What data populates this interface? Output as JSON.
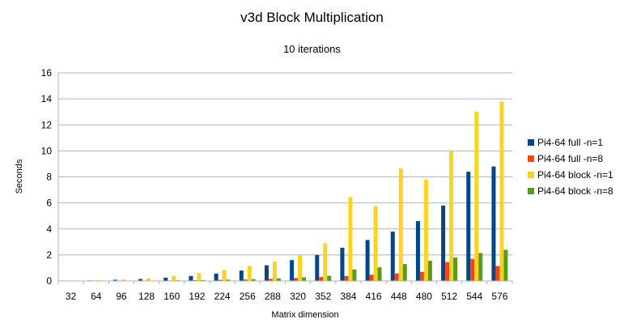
{
  "chart_data": {
    "type": "bar",
    "title": "v3d Block Multiplication",
    "subtitle": "10 iterations",
    "xlabel": "Matrix dimension",
    "ylabel": "Seconds",
    "ylim": [
      0,
      16
    ],
    "yticks": [
      0,
      2,
      4,
      6,
      8,
      10,
      12,
      14,
      16
    ],
    "grid": "horizontal",
    "legend_position": "right",
    "categories": [
      "32",
      "64",
      "96",
      "128",
      "160",
      "192",
      "224",
      "256",
      "288",
      "320",
      "352",
      "384",
      "416",
      "448",
      "480",
      "512",
      "544",
      "576"
    ],
    "series": [
      {
        "name": "Pi4-64 full -n=1",
        "color": "#004586",
        "values": [
          0.01,
          0.04,
          0.09,
          0.15,
          0.25,
          0.38,
          0.56,
          0.8,
          1.2,
          1.6,
          2.0,
          2.55,
          3.15,
          3.8,
          4.6,
          5.8,
          8.4,
          8.8
        ]
      },
      {
        "name": "Pi4-64 full -n=8",
        "color": "#ff420e",
        "values": [
          0.005,
          0.01,
          0.02,
          0.03,
          0.04,
          0.06,
          0.08,
          0.11,
          0.16,
          0.22,
          0.3,
          0.38,
          0.48,
          0.58,
          0.7,
          1.45,
          1.7,
          1.15
        ]
      },
      {
        "name": "Pi4-64 block -n=1",
        "color": "#ffd320",
        "values": [
          0.02,
          0.05,
          0.11,
          0.2,
          0.38,
          0.58,
          0.85,
          1.15,
          1.5,
          1.95,
          2.9,
          6.45,
          5.75,
          8.65,
          7.8,
          10.0,
          13.0,
          13.8
        ]
      },
      {
        "name": "Pi4-64 block -n=8",
        "color": "#579d1c",
        "values": [
          0.005,
          0.01,
          0.02,
          0.03,
          0.05,
          0.07,
          0.1,
          0.14,
          0.2,
          0.28,
          0.4,
          0.88,
          1.05,
          1.3,
          1.55,
          1.8,
          2.15,
          2.4
        ]
      }
    ]
  }
}
